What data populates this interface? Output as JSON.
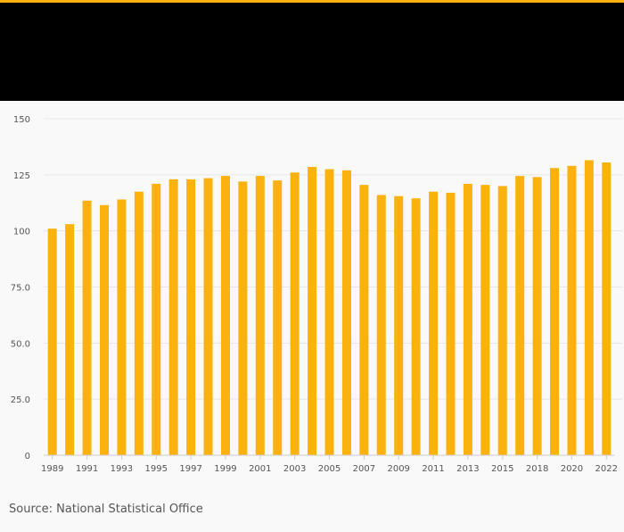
{
  "chart_data": {
    "type": "bar",
    "title": "",
    "xlabel": "",
    "ylabel": "",
    "categories": [
      "1989",
      "1990",
      "1991",
      "1992",
      "1993",
      "1994",
      "1995",
      "1996",
      "1997",
      "1998",
      "1999",
      "2000",
      "2001",
      "2002",
      "2003",
      "2004",
      "2005",
      "2006",
      "2007",
      "2008",
      "2009",
      "2010",
      "2011",
      "2012",
      "2013",
      "2014",
      "2015",
      "2016",
      "2018",
      "2019",
      "2020",
      "2021",
      "2022"
    ],
    "values": [
      101,
      103,
      113.5,
      111.5,
      114,
      117.5,
      121,
      123,
      123,
      123.5,
      124.5,
      122,
      124.5,
      122.5,
      126,
      128.5,
      127.5,
      127,
      120.5,
      116,
      115.5,
      114.5,
      117.5,
      117,
      121,
      120.5,
      120,
      124.5,
      124,
      128,
      129,
      131.5,
      130.5
    ],
    "x_tick_labels": [
      "1989",
      "1991",
      "1993",
      "1995",
      "1997",
      "1999",
      "2001",
      "2003",
      "2005",
      "2007",
      "2009",
      "2011",
      "2013",
      "2015",
      "2018",
      "2020",
      "2022"
    ],
    "y_tick_labels": [
      "0",
      "25.0",
      "50.0",
      "75.0",
      "100",
      "125",
      "150"
    ],
    "ylim": [
      0,
      150
    ],
    "grid": true,
    "bar_color": "#fbb20f"
  },
  "source_text": "Source: National Statistical Office",
  "colors": {
    "accent": "#fbb20f",
    "header_band": "#000000",
    "background": "#f9f9f9",
    "gridline": "#e6e6e6",
    "text": "#555555"
  }
}
